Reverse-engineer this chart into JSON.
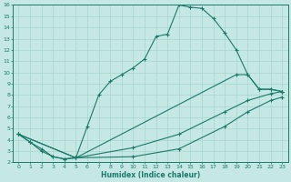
{
  "xlabel": "Humidex (Indice chaleur)",
  "bg_color": "#c5e8e4",
  "line_color": "#1a7a6a",
  "grid_color": "#a8d4ce",
  "xlim": [
    -0.5,
    23.5
  ],
  "ylim": [
    2,
    16
  ],
  "xticks": [
    0,
    1,
    2,
    3,
    4,
    5,
    6,
    7,
    8,
    9,
    10,
    11,
    12,
    13,
    14,
    15,
    16,
    17,
    18,
    19,
    20,
    21,
    22,
    23
  ],
  "yticks": [
    2,
    3,
    4,
    5,
    6,
    7,
    8,
    9,
    10,
    11,
    12,
    13,
    14,
    15,
    16
  ],
  "line1_x": [
    0,
    1,
    2,
    3,
    4,
    5,
    6,
    7,
    8,
    9,
    10,
    11,
    12,
    13,
    14,
    15,
    16,
    17,
    18,
    19,
    20,
    21,
    22,
    23
  ],
  "line1_y": [
    4.5,
    3.8,
    3.2,
    2.5,
    2.3,
    2.4,
    5.2,
    8.0,
    9.2,
    9.8,
    10.4,
    11.2,
    13.2,
    13.4,
    16.0,
    15.8,
    15.7,
    14.8,
    13.5,
    12.0,
    9.8,
    8.5,
    8.5,
    8.3
  ],
  "line2_x": [
    0,
    1,
    2,
    3,
    4,
    5,
    19,
    20,
    21,
    22,
    23
  ],
  "line2_y": [
    4.5,
    3.8,
    3.0,
    2.5,
    2.3,
    2.4,
    9.8,
    9.8,
    8.5,
    8.5,
    8.3
  ],
  "line3_x": [
    0,
    5,
    10,
    14,
    18,
    20,
    22,
    23
  ],
  "line3_y": [
    4.5,
    2.4,
    3.3,
    4.5,
    6.5,
    7.5,
    8.1,
    8.3
  ],
  "line4_x": [
    0,
    5,
    10,
    14,
    18,
    20,
    22,
    23
  ],
  "line4_y": [
    4.5,
    2.4,
    2.5,
    3.2,
    5.2,
    6.5,
    7.5,
    7.8
  ]
}
